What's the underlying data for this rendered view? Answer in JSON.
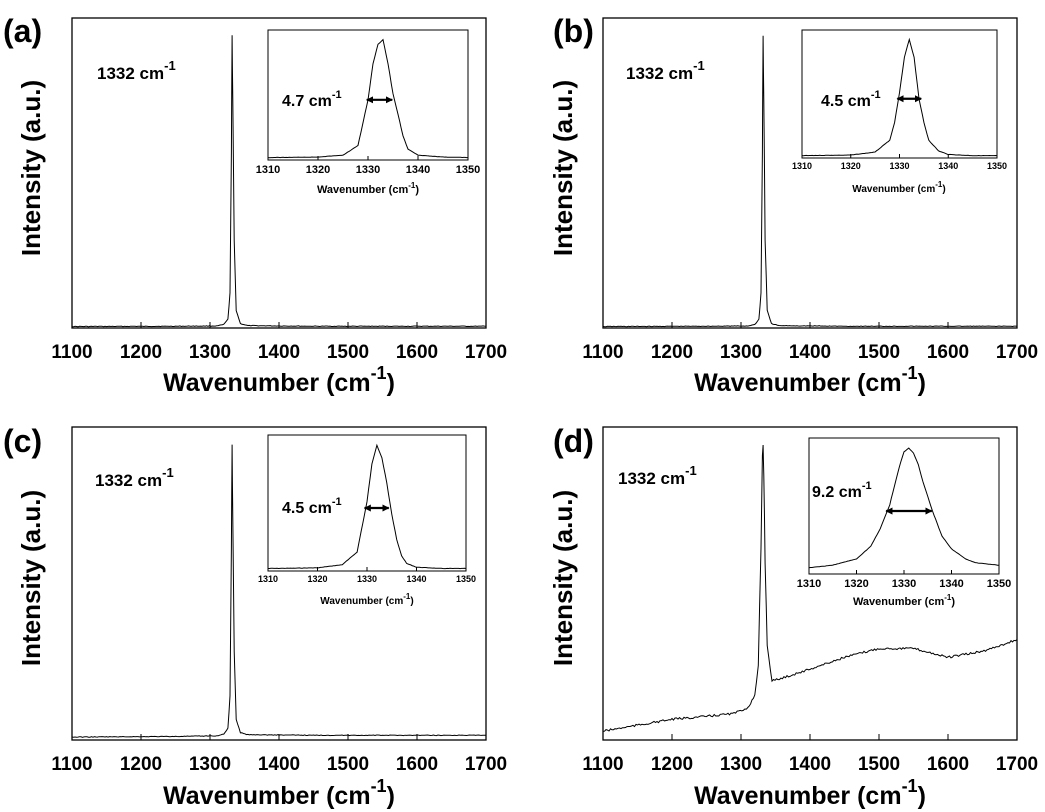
{
  "figure": {
    "panels": [
      {
        "label": "(a)",
        "peak_label_main": "1332 cm",
        "peak_label_sup": "-1",
        "fwhm_main": "4.7 cm",
        "fwhm_sup": "-1"
      },
      {
        "label": "(b)",
        "peak_label_main": "1332 cm",
        "peak_label_sup": "-1",
        "fwhm_main": "4.5 cm",
        "fwhm_sup": "-1"
      },
      {
        "label": "(c)",
        "peak_label_main": "1332 cm",
        "peak_label_sup": "-1",
        "fwhm_main": "4.5 cm",
        "fwhm_sup": "-1"
      },
      {
        "label": "(d)",
        "peak_label_main": "1332 cm",
        "peak_label_sup": "-1",
        "fwhm_main": "9.2 cm",
        "fwhm_sup": "-1"
      }
    ],
    "axis_text": {
      "ylabel": "Intensity (a.u.)",
      "xlabel_main": "Wavenumber (cm",
      "xlabel_sup": "-1",
      "xlabel_close": ")",
      "inset_xlabel_main": "Wavenumber (cm",
      "inset_xlabel_sup": "-1",
      "inset_xlabel_close": ")"
    }
  },
  "chart_data": [
    {
      "type": "line",
      "panel": "(a)",
      "xlabel": "Wavenumber (cm-1)",
      "ylabel": "Intensity (a.u.)",
      "xlim": [
        1100,
        1700
      ],
      "ylim": [
        0,
        1.06
      ],
      "x_ticks": [
        1100,
        1200,
        1300,
        1400,
        1500,
        1600,
        1700
      ],
      "y_ticks": [],
      "grid": false,
      "annotation": "1332 cm-1",
      "series": [
        {
          "x": [
            1100,
            1250,
            1310,
            1320,
            1326,
            1329,
            1331,
            1332,
            1333,
            1335,
            1338,
            1344,
            1355,
            1450,
            1550,
            1700
          ],
          "y": [
            0.005,
            0.006,
            0.007,
            0.012,
            0.03,
            0.12,
            0.6,
            1.0,
            0.78,
            0.3,
            0.06,
            0.015,
            0.008,
            0.006,
            0.006,
            0.006
          ]
        }
      ],
      "inset": {
        "xlim": [
          1310,
          1350
        ],
        "x_ticks": [
          1310,
          1320,
          1330,
          1340,
          1350
        ],
        "ylim": [
          0,
          1.08
        ],
        "fwhm": 4.7,
        "fwhm_label": "4.7 cm-1",
        "xlabel": "Wavenumber (cm-1)",
        "series": [
          {
            "x": [
              1310,
              1320,
              1325,
              1328,
              1330,
              1331,
              1332,
              1333,
              1334,
              1335,
              1336,
              1337,
              1338,
              1340,
              1345,
              1350
            ],
            "y": [
              0.02,
              0.025,
              0.04,
              0.12,
              0.5,
              0.8,
              0.96,
              1.0,
              0.8,
              0.55,
              0.38,
              0.2,
              0.09,
              0.04,
              0.025,
              0.02
            ]
          }
        ]
      }
    },
    {
      "type": "line",
      "panel": "(b)",
      "xlabel": "Wavenumber (cm-1)",
      "ylabel": "Intensity (a.u.)",
      "xlim": [
        1100,
        1700
      ],
      "ylim": [
        0,
        1.06
      ],
      "x_ticks": [
        1100,
        1200,
        1300,
        1400,
        1500,
        1600,
        1700
      ],
      "y_ticks": [],
      "grid": false,
      "annotation": "1332 cm-1",
      "series": [
        {
          "x": [
            1100,
            1250,
            1310,
            1320,
            1326,
            1329,
            1331,
            1332,
            1333,
            1335,
            1338,
            1344,
            1355,
            1450,
            1550,
            1700
          ],
          "y": [
            0.005,
            0.006,
            0.007,
            0.012,
            0.03,
            0.12,
            0.6,
            1.0,
            0.78,
            0.3,
            0.06,
            0.015,
            0.008,
            0.006,
            0.006,
            0.006
          ]
        }
      ],
      "inset": {
        "xlim": [
          1310,
          1350
        ],
        "x_ticks": [
          1310,
          1320,
          1330,
          1340,
          1350
        ],
        "ylim": [
          0,
          1.08
        ],
        "fwhm": 4.5,
        "fwhm_label": "4.5 cm-1",
        "xlabel": "Wavenumber (cm-1)",
        "series": [
          {
            "x": [
              1310,
              1320,
              1325,
              1328,
              1329,
              1330,
              1331,
              1332,
              1333,
              1334,
              1335,
              1336,
              1338,
              1340,
              1345,
              1350
            ],
            "y": [
              0.02,
              0.025,
              0.05,
              0.15,
              0.3,
              0.55,
              0.85,
              1.0,
              0.85,
              0.5,
              0.3,
              0.15,
              0.06,
              0.03,
              0.02,
              0.02
            ]
          }
        ]
      }
    },
    {
      "type": "line",
      "panel": "(c)",
      "xlabel": "Wavenumber (cm-1)",
      "ylabel": "Intensity (a.u.)",
      "xlim": [
        1100,
        1700
      ],
      "ylim": [
        0,
        1.06
      ],
      "x_ticks": [
        1100,
        1200,
        1300,
        1400,
        1500,
        1600,
        1700
      ],
      "y_ticks": [],
      "grid": false,
      "annotation": "1332 cm-1",
      "series": [
        {
          "x": [
            1100,
            1250,
            1310,
            1320,
            1326,
            1329,
            1331,
            1332,
            1333,
            1335,
            1338,
            1344,
            1355,
            1450,
            1550,
            1700
          ],
          "y": [
            0.01,
            0.012,
            0.014,
            0.02,
            0.04,
            0.15,
            0.65,
            1.0,
            0.75,
            0.3,
            0.07,
            0.025,
            0.018,
            0.016,
            0.016,
            0.016
          ]
        }
      ],
      "inset": {
        "xlim": [
          1310,
          1350
        ],
        "x_ticks": [
          1310,
          1320,
          1330,
          1340,
          1350
        ],
        "ylim": [
          0,
          1.08
        ],
        "fwhm": 4.5,
        "fwhm_label": "4.5 cm-1",
        "xlabel": "Wavenumber (cm-1)",
        "series": [
          {
            "x": [
              1310,
              1320,
              1325,
              1328,
              1330,
              1331,
              1332,
              1333,
              1334,
              1335,
              1336,
              1337,
              1338,
              1340,
              1345,
              1350
            ],
            "y": [
              0.02,
              0.025,
              0.05,
              0.15,
              0.55,
              0.85,
              1.0,
              0.9,
              0.7,
              0.45,
              0.25,
              0.12,
              0.06,
              0.03,
              0.02,
              0.02
            ]
          }
        ]
      }
    },
    {
      "type": "line",
      "panel": "(d)",
      "xlabel": "Wavenumber (cm-1)",
      "ylabel": "Intensity (a.u.)",
      "xlim": [
        1100,
        1700
      ],
      "ylim": [
        0,
        1.06
      ],
      "x_ticks": [
        1100,
        1200,
        1300,
        1400,
        1500,
        1600,
        1700
      ],
      "y_ticks": [],
      "grid": false,
      "annotation": "1332 cm-1",
      "series": [
        {
          "x": [
            1100,
            1150,
            1200,
            1250,
            1290,
            1310,
            1320,
            1325,
            1329,
            1331,
            1332,
            1333,
            1335,
            1338,
            1345,
            1360,
            1400,
            1450,
            1500,
            1550,
            1600,
            1650,
            1700
          ],
          "y": [
            0.03,
            0.05,
            0.07,
            0.08,
            0.09,
            0.11,
            0.15,
            0.25,
            0.65,
            0.96,
            1.0,
            0.9,
            0.6,
            0.32,
            0.2,
            0.21,
            0.24,
            0.28,
            0.31,
            0.31,
            0.28,
            0.3,
            0.34
          ]
        }
      ],
      "inset": {
        "xlim": [
          1310,
          1350
        ],
        "x_ticks": [
          1310,
          1320,
          1330,
          1340,
          1350
        ],
        "ylim": [
          0,
          1.08
        ],
        "fwhm": 9.2,
        "fwhm_label": "9.2 cm-1",
        "xlabel": "Wavenumber (cm-1)",
        "series": [
          {
            "x": [
              1310,
              1315,
              1320,
              1323,
              1325,
              1327,
              1328,
              1329,
              1330,
              1331,
              1332,
              1333,
              1334,
              1336,
              1338,
              1340,
              1343,
              1345,
              1350
            ],
            "y": [
              0.05,
              0.07,
              0.12,
              0.22,
              0.36,
              0.55,
              0.7,
              0.85,
              0.97,
              1.0,
              0.96,
              0.87,
              0.73,
              0.5,
              0.3,
              0.2,
              0.12,
              0.09,
              0.07
            ]
          }
        ]
      }
    }
  ]
}
